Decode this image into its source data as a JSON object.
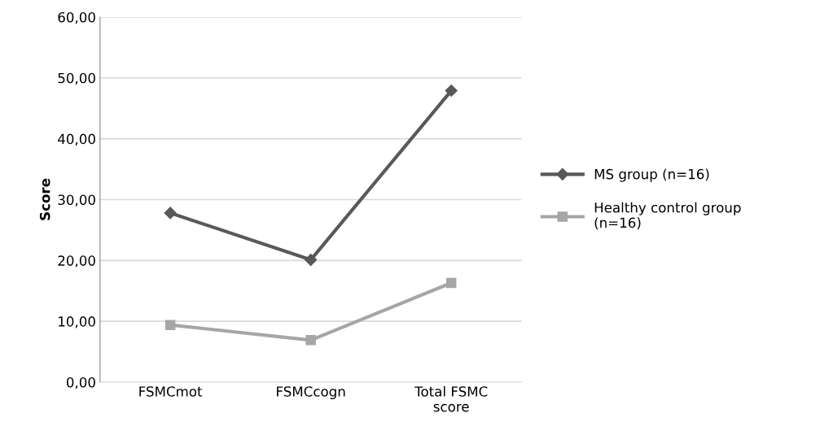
{
  "chart_data": {
    "type": "line",
    "ylabel": "Score",
    "categories": [
      "FSMCmot",
      "FSMCcogn",
      "Total FSMC\nscore"
    ],
    "series": [
      {
        "name": "MS group (n=16)",
        "color": "#595959",
        "marker": "diamond",
        "values": [
          27.8,
          20.1,
          47.9
        ]
      },
      {
        "name": "Healthy control group\n(n=16)",
        "color": "#a6a6a6",
        "marker": "square",
        "values": [
          9.4,
          6.9,
          16.3
        ]
      }
    ],
    "ylim": [
      0,
      60
    ],
    "yticks": [
      {
        "value": 0,
        "label": "0,00"
      },
      {
        "value": 10,
        "label": "10,00"
      },
      {
        "value": 20,
        "label": "20,00"
      },
      {
        "value": 30,
        "label": "30,00"
      },
      {
        "value": 40,
        "label": "40,00"
      },
      {
        "value": 50,
        "label": "50,00"
      },
      {
        "value": 60,
        "label": "60,00"
      }
    ],
    "grid": "y",
    "legend": "right",
    "line_style": "solid"
  }
}
